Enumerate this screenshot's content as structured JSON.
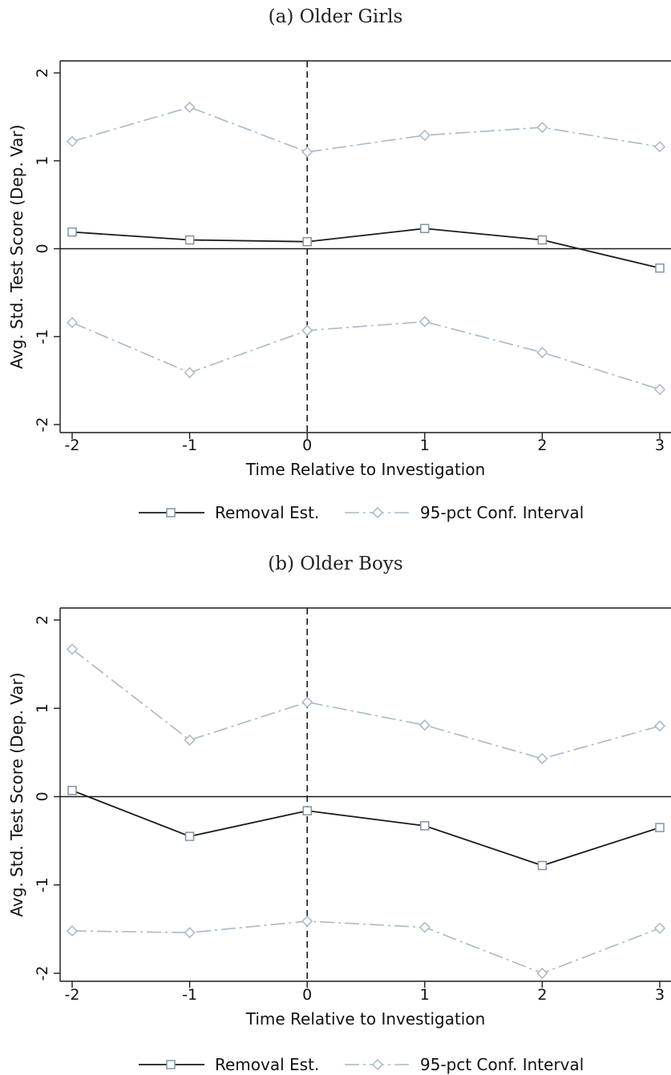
{
  "figures": [
    {
      "title": "(a) Older Girls"
    },
    {
      "title": "(b) Older Boys"
    }
  ],
  "colors": {
    "estimate": "#1a1a1a",
    "ci": "#a9b8c8",
    "axis": "#1a1a1a"
  },
  "chart_data": [
    {
      "type": "line",
      "title": "(a) Older Girls",
      "xlabel": "Time Relative to Investigation",
      "ylabel": "Avg. Std. Test Score (Dep. Var)",
      "x": [
        -2,
        -1,
        0,
        1,
        2,
        3
      ],
      "xlim": [
        -2,
        3
      ],
      "ylim": [
        -2,
        2
      ],
      "xticks": [
        "-2",
        "-1",
        "0",
        "1",
        "2",
        "3"
      ],
      "yticks": [
        "-2",
        "-1",
        "0",
        "1",
        "2"
      ],
      "reference_lines": {
        "horizontal_y": 0,
        "vertical_x_dashed": 0
      },
      "legend_position": "bottom",
      "series": [
        {
          "name": "Removal Est.",
          "marker": "square",
          "style": "solid",
          "values": [
            0.19,
            0.1,
            0.08,
            0.23,
            0.1,
            -0.22
          ]
        },
        {
          "name": "95-pct Conf. Interval",
          "marker": "diamond",
          "style": "dashdot",
          "values": [
            1.22,
            1.61,
            1.1,
            1.29,
            1.38,
            1.16
          ]
        },
        {
          "name": "95-pct Conf. Interval",
          "marker": "diamond",
          "style": "dashdot",
          "values": [
            -0.84,
            -1.41,
            -0.93,
            -0.83,
            -1.18,
            -1.6
          ]
        }
      ]
    },
    {
      "type": "line",
      "title": "(b) Older Boys",
      "xlabel": "Time Relative to Investigation",
      "ylabel": "Avg. Std. Test Score (Dep. Var)",
      "x": [
        -2,
        -1,
        0,
        1,
        2,
        3
      ],
      "xlim": [
        -2,
        3
      ],
      "ylim": [
        -2,
        2
      ],
      "xticks": [
        "-2",
        "-1",
        "0",
        "1",
        "2",
        "3"
      ],
      "yticks": [
        "-2",
        "-1",
        "0",
        "1",
        "2"
      ],
      "reference_lines": {
        "horizontal_y": 0,
        "vertical_x_dashed": 0
      },
      "legend_position": "bottom",
      "series": [
        {
          "name": "Removal Est.",
          "marker": "square",
          "style": "solid",
          "values": [
            0.07,
            -0.45,
            -0.16,
            -0.33,
            -0.78,
            -0.35
          ]
        },
        {
          "name": "95-pct Conf. Interval",
          "marker": "diamond",
          "style": "dashdot",
          "values": [
            1.67,
            0.64,
            1.07,
            0.81,
            0.43,
            0.8
          ]
        },
        {
          "name": "95-pct Conf. Interval",
          "marker": "diamond",
          "style": "dashdot",
          "values": [
            -1.52,
            -1.54,
            -1.41,
            -1.48,
            -2.0,
            -1.49
          ]
        }
      ]
    }
  ]
}
